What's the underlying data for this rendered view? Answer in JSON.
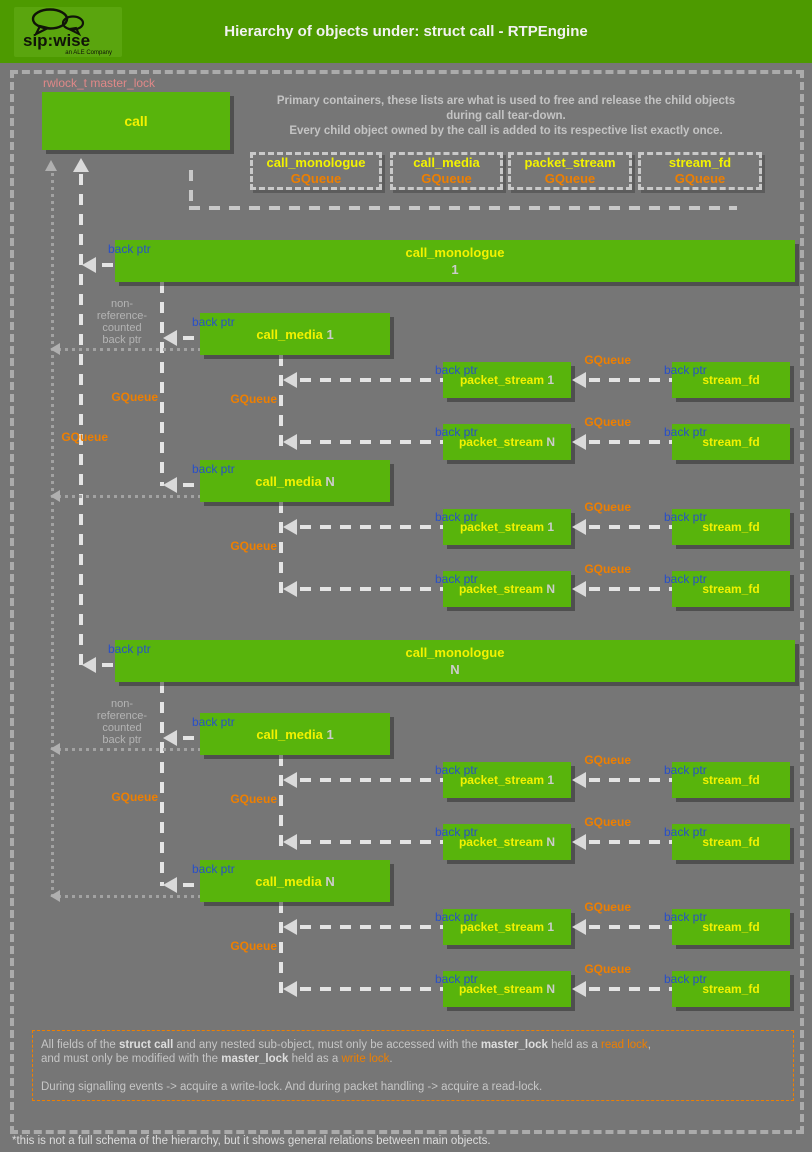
{
  "header": {
    "title": "Hierarchy of objects under: struct call - RTPEngine",
    "logo": {
      "brand": "sip:wise",
      "tagline": "an ALE Company"
    }
  },
  "colors": {
    "header_green": "#4d9a00",
    "logo_green": "#5aa50e",
    "box_green": "#58b40c",
    "yellow": "#f2f200",
    "orange": "#ee7f00",
    "blue": "#2850c8",
    "salmon": "#e08888"
  },
  "top": {
    "lock_label": "rwlock_t master_lock",
    "info_lines": [
      "Primary containers, these lists are what is used to free and release the child objects",
      "during call tear-down.",
      "Every child object owned by the call is added to its respective list exactly once."
    ],
    "queue_boxes": [
      {
        "name": "call_monologue",
        "sub": "GQueue"
      },
      {
        "name": "call_media",
        "sub": "GQueue"
      },
      {
        "name": "packet_stream",
        "sub": "GQueue"
      },
      {
        "name": "stream_fd",
        "sub": "GQueue"
      }
    ]
  },
  "labels": {
    "back_ptr": "back ptr",
    "gqueue": "GQueue",
    "non_ref_lines": [
      "non-",
      "reference-",
      "counted",
      "back ptr"
    ]
  },
  "diagram": {
    "root": "call",
    "monologues": [
      {
        "name": "call_monologue",
        "index": "1",
        "medias": [
          {
            "name": "call_media",
            "index": "1",
            "packet_streams": [
              {
                "name": "packet_stream",
                "index": "1",
                "stream_fd": "stream_fd"
              },
              {
                "name": "packet_stream",
                "index": "N",
                "stream_fd": "stream_fd"
              }
            ]
          },
          {
            "name": "call_media",
            "index": "N",
            "packet_streams": [
              {
                "name": "packet_stream",
                "index": "1",
                "stream_fd": "stream_fd"
              },
              {
                "name": "packet_stream",
                "index": "N",
                "stream_fd": "stream_fd"
              }
            ]
          }
        ]
      },
      {
        "name": "call_monologue",
        "index": "N",
        "medias": [
          {
            "name": "call_media",
            "index": "1",
            "packet_streams": [
              {
                "name": "packet_stream",
                "index": "1",
                "stream_fd": "stream_fd"
              },
              {
                "name": "packet_stream",
                "index": "N",
                "stream_fd": "stream_fd"
              }
            ]
          },
          {
            "name": "call_media",
            "index": "N",
            "packet_streams": [
              {
                "name": "packet_stream",
                "index": "1",
                "stream_fd": "stream_fd"
              },
              {
                "name": "packet_stream",
                "index": "N",
                "stream_fd": "stream_fd"
              }
            ]
          }
        ]
      }
    ]
  },
  "note": {
    "lines": [
      [
        {
          "t": "All fields of the "
        },
        {
          "t": "struct call",
          "s": "b"
        },
        {
          "t": " and any nested sub-object, must only be accessed with the "
        },
        {
          "t": "master_lock",
          "s": "b"
        },
        {
          "t": " held as a "
        },
        {
          "t": "read lock",
          "s": "o"
        },
        {
          "t": ","
        }
      ],
      [
        {
          "t": "and must only be modified with the "
        },
        {
          "t": "master_lock",
          "s": "b"
        },
        {
          "t": " held as a "
        },
        {
          "t": "write lock",
          "s": "o"
        },
        {
          "t": "."
        }
      ],
      [],
      [
        {
          "t": "During signalling events -> acquire a write-lock. And during packet handling -> acquire a read-lock."
        }
      ]
    ]
  },
  "footer": "*this is not a full schema of the hierarchy, but it shows general relations between main objects."
}
